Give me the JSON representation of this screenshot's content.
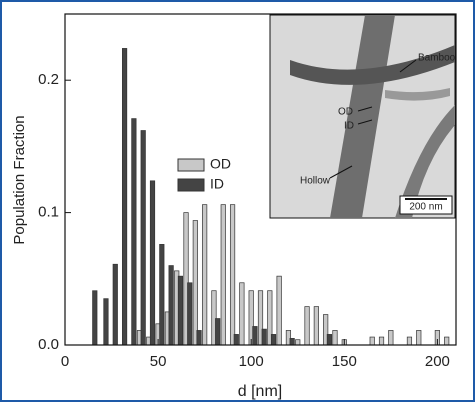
{
  "chart_data": {
    "type": "bar",
    "x_label": "d [nm]",
    "y_label": "Population Fraction",
    "xlim": [
      0,
      210
    ],
    "xticks": [
      0,
      50,
      100,
      150,
      200
    ],
    "ylim": [
      0,
      0.25
    ],
    "yticks": [
      {
        "value": 0,
        "label": "0.0"
      },
      0.1,
      0.2
    ],
    "series": [
      {
        "name": "OD",
        "color": "#c8c8c8",
        "x": [
          40,
          45,
          50,
          55,
          60,
          65,
          70,
          75,
          80,
          85,
          90,
          95,
          100,
          105,
          110,
          115,
          120,
          125,
          130,
          135,
          140,
          145,
          150,
          165,
          170,
          175,
          185,
          190,
          200,
          205
        ],
        "values": [
          0.011,
          0.006,
          0.016,
          0.025,
          0.056,
          0.1,
          0.094,
          0.106,
          0.041,
          0.106,
          0.106,
          0.047,
          0.041,
          0.041,
          0.041,
          0.052,
          0.011,
          0.004,
          0.029,
          0.029,
          0.023,
          0.011,
          0.004,
          0.006,
          0.006,
          0.011,
          0.006,
          0.011,
          0.011,
          0.006
        ]
      },
      {
        "name": "ID",
        "color": "#444444",
        "x": [
          16,
          22,
          27,
          32,
          37,
          42,
          47,
          52,
          57,
          62,
          67,
          72,
          82,
          92,
          102,
          107,
          112,
          122,
          142
        ],
        "values": [
          0.041,
          0.035,
          0.061,
          0.224,
          0.171,
          0.162,
          0.124,
          0.076,
          0.06,
          0.052,
          0.047,
          0.011,
          0.02,
          0.008,
          0.014,
          0.012,
          0.008,
          0.005,
          0.008
        ]
      }
    ],
    "annotations": [
      "Bamboo",
      "OD",
      "ID",
      "Hollow",
      "200 nm"
    ]
  }
}
